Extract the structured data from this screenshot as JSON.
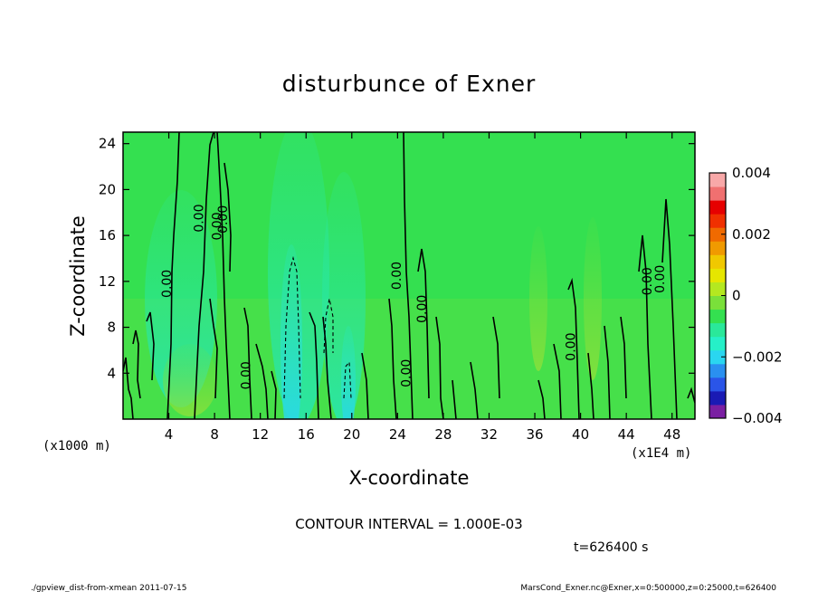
{
  "chart_data": {
    "type": "heatmap",
    "title": "disturbunce of Exner",
    "xlabel": "X-coordinate",
    "ylabel": "Z-coordinate",
    "x_unit_note": "(x1E4 m)",
    "z_unit_note": "(x1000 m)",
    "xlim": [
      0,
      50
    ],
    "ylim": [
      0,
      25
    ],
    "x_ticks": [
      4,
      8,
      12,
      16,
      20,
      24,
      28,
      32,
      36,
      40,
      44,
      48
    ],
    "y_ticks": [
      4,
      8,
      12,
      16,
      20,
      24
    ],
    "colorbar": {
      "range": [
        -0.004,
        0.004
      ],
      "tick_labels": [
        "0.004",
        "0.002",
        "0",
        "−0.002",
        "−0.004"
      ],
      "tick_values": [
        0.004,
        0.002,
        0,
        -0.002,
        -0.004
      ],
      "colors": [
        "#7a1fa2",
        "#1a1ab4",
        "#2a55e8",
        "#2a90f0",
        "#2ad6f0",
        "#26f0c8",
        "#2ae89a",
        "#34e050",
        "#7ae03a",
        "#b4e820",
        "#e6e600",
        "#f0c800",
        "#f09a00",
        "#f06a00",
        "#f03000",
        "#e60000",
        "#f07070",
        "#f8a8a8"
      ]
    },
    "contour_interval_text": "CONTOUR INTERVAL = 1.000E-03",
    "contour_labels": [
      {
        "text": "0.00",
        "x": 4.2,
        "z": 11.8
      },
      {
        "text": "0.00",
        "x": 7.0,
        "z": 17.5
      },
      {
        "text": "0.00",
        "x": 8.6,
        "z": 16.8
      },
      {
        "text": "0.00",
        "x": 9.1,
        "z": 17.4
      },
      {
        "text": "0.00",
        "x": 11.1,
        "z": 3.8
      },
      {
        "text": "0.00",
        "x": 24.3,
        "z": 12.5
      },
      {
        "text": "0.00",
        "x": 26.5,
        "z": 9.6
      },
      {
        "text": "0.00",
        "x": 25.1,
        "z": 4.0
      },
      {
        "text": "0.00",
        "x": 39.5,
        "z": 6.3
      },
      {
        "text": "0.00",
        "x": 46.2,
        "z": 12.0
      },
      {
        "text": "0.00",
        "x": 47.3,
        "z": 12.2
      }
    ]
  },
  "time_text": "t=626400 s",
  "footer_left": "./gpview_dist-from-xmean  2011-07-15",
  "footer_right": "MarsCond_Exner.nc@Exner,x=0:500000,z=0:25000,t=626400"
}
